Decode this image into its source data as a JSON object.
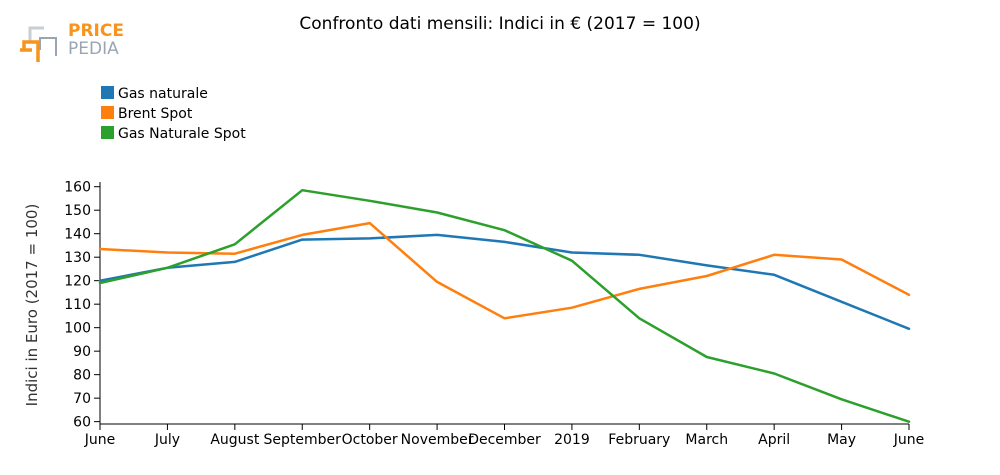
{
  "logo": {
    "word1": "PRICE",
    "word2": "PEDIA",
    "color1": "#f7941d",
    "color2": "#9aa5b1"
  },
  "chart_data": {
    "type": "line",
    "title": "Confronto dati mensili: Indici in € (2017 = 100)",
    "ylabel": "Indici in Euro (2017 = 100)",
    "xlabel": "",
    "ylim": [
      59,
      162
    ],
    "yticks": [
      60,
      70,
      80,
      90,
      100,
      110,
      120,
      130,
      140,
      150,
      160
    ],
    "categories": [
      "June",
      "July",
      "August",
      "September",
      "October",
      "November",
      "December",
      "2019",
      "February",
      "March",
      "April",
      "May",
      "June"
    ],
    "legend_position": "top-left",
    "grid": false,
    "series": [
      {
        "name": "Gas naturale",
        "color": "#1f77b4",
        "values": [
          120,
          125.5,
          128,
          137.5,
          138,
          139.5,
          136.5,
          132,
          131,
          126.5,
          122.5,
          111,
          99.5
        ]
      },
      {
        "name": "Brent Spot",
        "color": "#ff7f0e",
        "values": [
          133.5,
          132,
          131.5,
          139.5,
          144.5,
          119.5,
          104,
          108.5,
          116.5,
          122,
          131,
          129,
          114
        ]
      },
      {
        "name": "Gas Naturale Spot",
        "color": "#2ca02c",
        "values": [
          119,
          125.5,
          135.5,
          158.5,
          154,
          149,
          141.5,
          128.5,
          104,
          87.5,
          80.5,
          69.5,
          60
        ]
      }
    ]
  }
}
